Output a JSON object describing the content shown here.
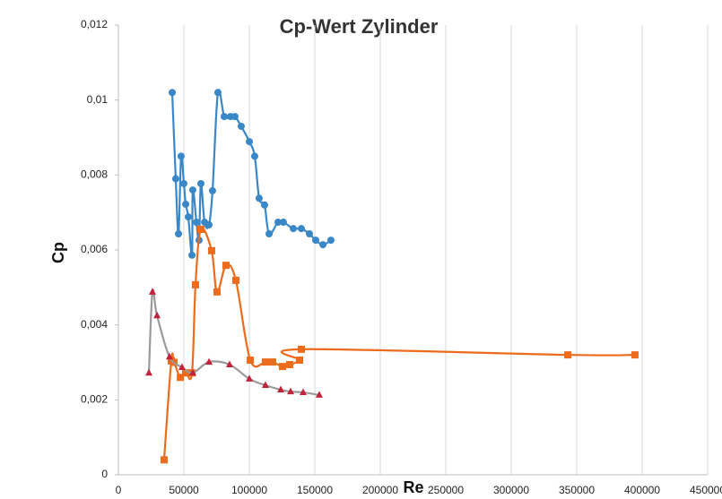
{
  "chart_data": {
    "type": "scatter",
    "title": "Cp-Wert Zylinder",
    "x_label": "Re",
    "y_label": "Cp",
    "xlim": [
      0,
      450000
    ],
    "xticks": [
      0,
      50000,
      100000,
      150000,
      200000,
      250000,
      300000,
      350000,
      400000,
      450000
    ],
    "ylim": [
      0,
      0.012
    ],
    "yticks": [
      0,
      {
        "value": 0.002,
        "label": "0,002"
      },
      {
        "value": 0.004,
        "label": "0,004"
      },
      {
        "value": 0.006,
        "label": "0,006"
      },
      {
        "value": 0.008,
        "label": "0,008"
      },
      {
        "value": 0.01,
        "label": "0,01"
      },
      {
        "value": 0.012,
        "label": "0,012"
      }
    ],
    "grid": "x",
    "smooth": true,
    "series": [
      {
        "color": "#3a87c8",
        "marker": "circle",
        "x": [
          41100,
          43800,
          45900,
          47900,
          50000,
          51400,
          53400,
          56200,
          56800,
          59600,
          61600,
          63000,
          65800,
          69200,
          71900,
          76000,
          80800,
          85600,
          89000,
          93800,
          100000,
          104100,
          107500,
          111600,
          115100,
          121900,
          126000,
          133600,
          139700,
          145900,
          150700,
          156200,
          162300
        ],
        "values": [
          0.0102,
          0.0079,
          0.00643,
          0.0085,
          0.00777,
          0.00722,
          0.00688,
          0.00586,
          0.0076,
          0.00674,
          0.00626,
          0.00777,
          0.00674,
          0.00667,
          0.00758,
          0.0102,
          0.00956,
          0.00956,
          0.00956,
          0.0093,
          0.00889,
          0.0085,
          0.00738,
          0.0072,
          0.00643,
          0.00674,
          0.00674,
          0.00657,
          0.00657,
          0.00643,
          0.00626,
          0.00614,
          0.00626
        ]
      },
      {
        "color": "#ec6b1c",
        "marker": "square",
        "x": [
          34900,
          40400,
          42500,
          47300,
          51400,
          56200,
          58900,
          63000,
          71200,
          75300,
          82200,
          89700,
          100700,
          112300,
          117800,
          125300,
          130800,
          138400,
          139700,
          343200,
          394500
        ],
        "values": [
          0.0004,
          0.00304,
          0.003,
          0.0026,
          0.00272,
          0.00272,
          0.00507,
          0.00655,
          0.00598,
          0.00488,
          0.00559,
          0.00519,
          0.00306,
          0.00301,
          0.00301,
          0.00289,
          0.00294,
          0.00306,
          0.00335,
          0.0032,
          0.0032
        ]
      },
      {
        "color": "#9a9a9a",
        "marker_color": "#c0233a",
        "marker": "triangle",
        "x": [
          23300,
          26000,
          29500,
          39000,
          48600,
          56800,
          69200,
          84900,
          100000,
          112300,
          124000,
          131500,
          141100,
          153400
        ],
        "values": [
          0.00272,
          0.00488,
          0.00425,
          0.00315,
          0.00287,
          0.00272,
          0.00301,
          0.00294,
          0.00256,
          0.00239,
          0.00227,
          0.00222,
          0.0022,
          0.00213
        ]
      }
    ]
  }
}
